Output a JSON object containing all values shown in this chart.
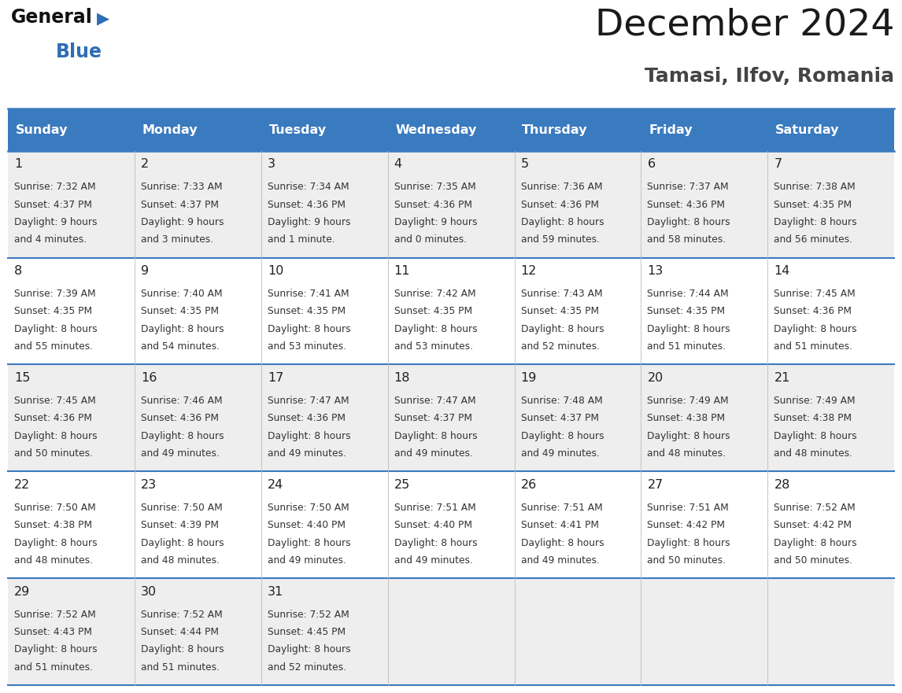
{
  "title": "December 2024",
  "subtitle": "Tamasi, Ilfov, Romania",
  "header_color": "#3a7abf",
  "header_text_color": "#ffffff",
  "background_color": "#ffffff",
  "cell_bg_odd": "#eeeeee",
  "cell_bg_even": "#ffffff",
  "separator_color": "#3a7abf",
  "day_names": [
    "Sunday",
    "Monday",
    "Tuesday",
    "Wednesday",
    "Thursday",
    "Friday",
    "Saturday"
  ],
  "days": [
    {
      "day": 1,
      "col": 0,
      "row": 0,
      "sunrise": "7:32 AM",
      "sunset": "4:37 PM",
      "daylight_h": "9 hours",
      "daylight_m": "and 4 minutes."
    },
    {
      "day": 2,
      "col": 1,
      "row": 0,
      "sunrise": "7:33 AM",
      "sunset": "4:37 PM",
      "daylight_h": "9 hours",
      "daylight_m": "and 3 minutes."
    },
    {
      "day": 3,
      "col": 2,
      "row": 0,
      "sunrise": "7:34 AM",
      "sunset": "4:36 PM",
      "daylight_h": "9 hours",
      "daylight_m": "and 1 minute."
    },
    {
      "day": 4,
      "col": 3,
      "row": 0,
      "sunrise": "7:35 AM",
      "sunset": "4:36 PM",
      "daylight_h": "9 hours",
      "daylight_m": "and 0 minutes."
    },
    {
      "day": 5,
      "col": 4,
      "row": 0,
      "sunrise": "7:36 AM",
      "sunset": "4:36 PM",
      "daylight_h": "8 hours",
      "daylight_m": "and 59 minutes."
    },
    {
      "day": 6,
      "col": 5,
      "row": 0,
      "sunrise": "7:37 AM",
      "sunset": "4:36 PM",
      "daylight_h": "8 hours",
      "daylight_m": "and 58 minutes."
    },
    {
      "day": 7,
      "col": 6,
      "row": 0,
      "sunrise": "7:38 AM",
      "sunset": "4:35 PM",
      "daylight_h": "8 hours",
      "daylight_m": "and 56 minutes."
    },
    {
      "day": 8,
      "col": 0,
      "row": 1,
      "sunrise": "7:39 AM",
      "sunset": "4:35 PM",
      "daylight_h": "8 hours",
      "daylight_m": "and 55 minutes."
    },
    {
      "day": 9,
      "col": 1,
      "row": 1,
      "sunrise": "7:40 AM",
      "sunset": "4:35 PM",
      "daylight_h": "8 hours",
      "daylight_m": "and 54 minutes."
    },
    {
      "day": 10,
      "col": 2,
      "row": 1,
      "sunrise": "7:41 AM",
      "sunset": "4:35 PM",
      "daylight_h": "8 hours",
      "daylight_m": "and 53 minutes."
    },
    {
      "day": 11,
      "col": 3,
      "row": 1,
      "sunrise": "7:42 AM",
      "sunset": "4:35 PM",
      "daylight_h": "8 hours",
      "daylight_m": "and 53 minutes."
    },
    {
      "day": 12,
      "col": 4,
      "row": 1,
      "sunrise": "7:43 AM",
      "sunset": "4:35 PM",
      "daylight_h": "8 hours",
      "daylight_m": "and 52 minutes."
    },
    {
      "day": 13,
      "col": 5,
      "row": 1,
      "sunrise": "7:44 AM",
      "sunset": "4:35 PM",
      "daylight_h": "8 hours",
      "daylight_m": "and 51 minutes."
    },
    {
      "day": 14,
      "col": 6,
      "row": 1,
      "sunrise": "7:45 AM",
      "sunset": "4:36 PM",
      "daylight_h": "8 hours",
      "daylight_m": "and 51 minutes."
    },
    {
      "day": 15,
      "col": 0,
      "row": 2,
      "sunrise": "7:45 AM",
      "sunset": "4:36 PM",
      "daylight_h": "8 hours",
      "daylight_m": "and 50 minutes."
    },
    {
      "day": 16,
      "col": 1,
      "row": 2,
      "sunrise": "7:46 AM",
      "sunset": "4:36 PM",
      "daylight_h": "8 hours",
      "daylight_m": "and 49 minutes."
    },
    {
      "day": 17,
      "col": 2,
      "row": 2,
      "sunrise": "7:47 AM",
      "sunset": "4:36 PM",
      "daylight_h": "8 hours",
      "daylight_m": "and 49 minutes."
    },
    {
      "day": 18,
      "col": 3,
      "row": 2,
      "sunrise": "7:47 AM",
      "sunset": "4:37 PM",
      "daylight_h": "8 hours",
      "daylight_m": "and 49 minutes."
    },
    {
      "day": 19,
      "col": 4,
      "row": 2,
      "sunrise": "7:48 AM",
      "sunset": "4:37 PM",
      "daylight_h": "8 hours",
      "daylight_m": "and 49 minutes."
    },
    {
      "day": 20,
      "col": 5,
      "row": 2,
      "sunrise": "7:49 AM",
      "sunset": "4:38 PM",
      "daylight_h": "8 hours",
      "daylight_m": "and 48 minutes."
    },
    {
      "day": 21,
      "col": 6,
      "row": 2,
      "sunrise": "7:49 AM",
      "sunset": "4:38 PM",
      "daylight_h": "8 hours",
      "daylight_m": "and 48 minutes."
    },
    {
      "day": 22,
      "col": 0,
      "row": 3,
      "sunrise": "7:50 AM",
      "sunset": "4:38 PM",
      "daylight_h": "8 hours",
      "daylight_m": "and 48 minutes."
    },
    {
      "day": 23,
      "col": 1,
      "row": 3,
      "sunrise": "7:50 AM",
      "sunset": "4:39 PM",
      "daylight_h": "8 hours",
      "daylight_m": "and 48 minutes."
    },
    {
      "day": 24,
      "col": 2,
      "row": 3,
      "sunrise": "7:50 AM",
      "sunset": "4:40 PM",
      "daylight_h": "8 hours",
      "daylight_m": "and 49 minutes."
    },
    {
      "day": 25,
      "col": 3,
      "row": 3,
      "sunrise": "7:51 AM",
      "sunset": "4:40 PM",
      "daylight_h": "8 hours",
      "daylight_m": "and 49 minutes."
    },
    {
      "day": 26,
      "col": 4,
      "row": 3,
      "sunrise": "7:51 AM",
      "sunset": "4:41 PM",
      "daylight_h": "8 hours",
      "daylight_m": "and 49 minutes."
    },
    {
      "day": 27,
      "col": 5,
      "row": 3,
      "sunrise": "7:51 AM",
      "sunset": "4:42 PM",
      "daylight_h": "8 hours",
      "daylight_m": "and 50 minutes."
    },
    {
      "day": 28,
      "col": 6,
      "row": 3,
      "sunrise": "7:52 AM",
      "sunset": "4:42 PM",
      "daylight_h": "8 hours",
      "daylight_m": "and 50 minutes."
    },
    {
      "day": 29,
      "col": 0,
      "row": 4,
      "sunrise": "7:52 AM",
      "sunset": "4:43 PM",
      "daylight_h": "8 hours",
      "daylight_m": "and 51 minutes."
    },
    {
      "day": 30,
      "col": 1,
      "row": 4,
      "sunrise": "7:52 AM",
      "sunset": "4:44 PM",
      "daylight_h": "8 hours",
      "daylight_m": "and 51 minutes."
    },
    {
      "day": 31,
      "col": 2,
      "row": 4,
      "sunrise": "7:52 AM",
      "sunset": "4:45 PM",
      "daylight_h": "8 hours",
      "daylight_m": "and 52 minutes."
    }
  ]
}
